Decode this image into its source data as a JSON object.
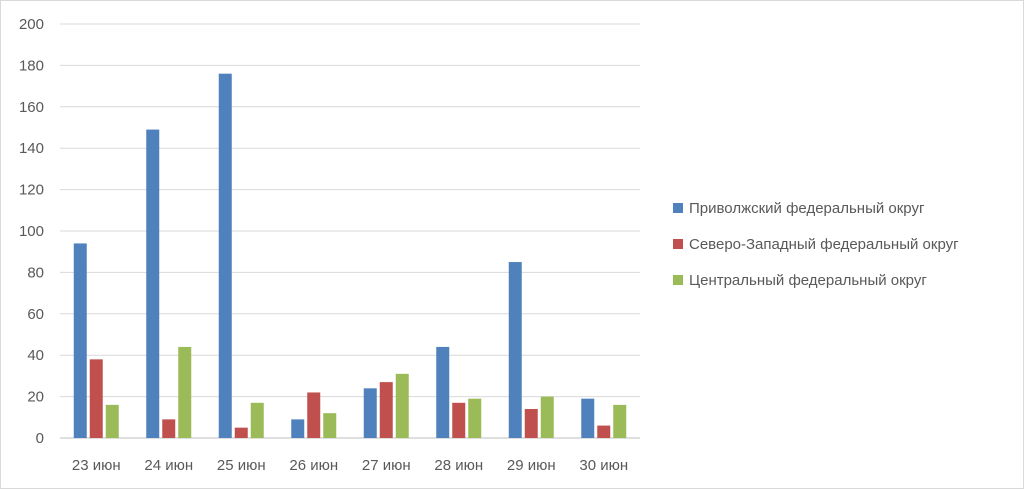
{
  "chart_data": {
    "type": "bar",
    "categories": [
      "23 июн",
      "24 июн",
      "25 июн",
      "26 июн",
      "27 июн",
      "28 июн",
      "29 июн",
      "30 июн"
    ],
    "series": [
      {
        "name": "Приволжский федеральный округ",
        "color": "#4f81bd",
        "values": [
          94,
          149,
          176,
          9,
          24,
          44,
          85,
          19
        ]
      },
      {
        "name": "Северо-Западный федеральный округ",
        "color": "#c0504d",
        "values": [
          38,
          9,
          5,
          22,
          27,
          17,
          14,
          6
        ]
      },
      {
        "name": "Центральный федеральный округ",
        "color": "#9bbb59",
        "values": [
          16,
          44,
          17,
          12,
          31,
          19,
          20,
          16
        ]
      }
    ],
    "ylim": [
      0,
      200
    ],
    "yticks": [
      "0",
      "20",
      "40",
      "60",
      "80",
      "100",
      "120",
      "140",
      "160",
      "180",
      "200"
    ],
    "grid": true,
    "legend_position": "right"
  }
}
